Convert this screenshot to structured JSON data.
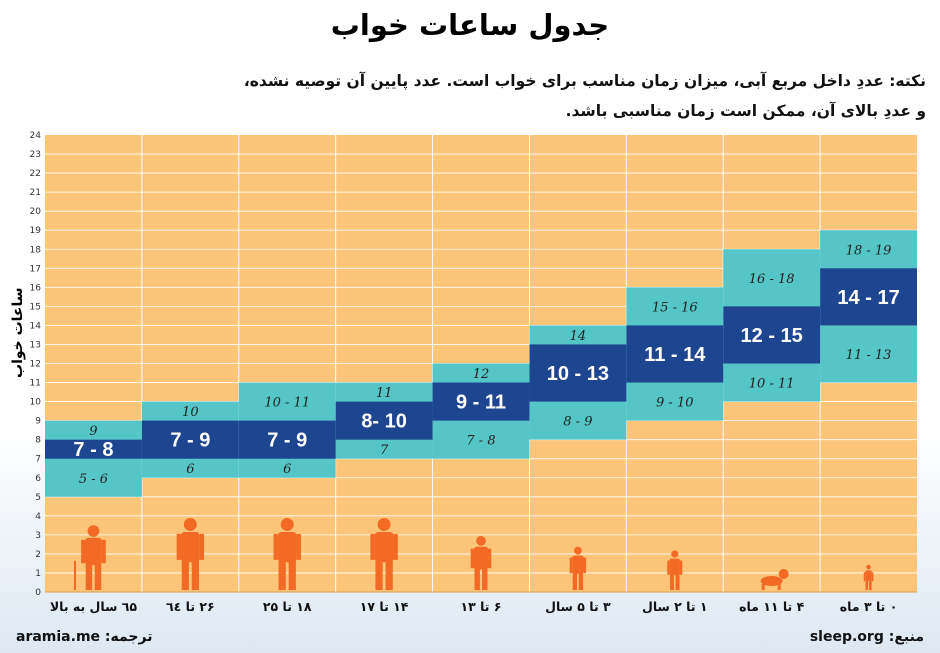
{
  "title": "جدول ساعات خواب",
  "note": {
    "line1": "نکته: عددِ داخل مربع آبی، میزان زمان مناسب برای خواب است. عدد پایین آن توصیه نشده،",
    "line2": "و عددِ بالای آن، ممکن است زمان مناسبی باشد."
  },
  "footer": {
    "source": "منبع: sleep.org",
    "translation": "ترجمه: aramia.me"
  },
  "colors": {
    "background": "#fcc579",
    "gridline": "#ffffff",
    "recommended": "#1d4590",
    "acceptable": "#55c5c7",
    "figure": "#f26a25"
  },
  "chart_data": {
    "type": "bar",
    "ylabel": "ساعات خواب",
    "ylim": [
      0,
      24
    ],
    "yticks": [
      0,
      1,
      2,
      3,
      4,
      5,
      6,
      7,
      8,
      9,
      10,
      11,
      12,
      13,
      14,
      15,
      16,
      17,
      18,
      19,
      20,
      21,
      22,
      23,
      24
    ],
    "categories": [
      "۰ تا ۳ ماه",
      "۴ تا ۱۱ ماه",
      "۱ تا ۲ سال",
      "۳ تا ۵ سال",
      "۶ تا ۱۳",
      "۱۴ تا ۱۷",
      "۱۸ تا ۲۵",
      "۲۶ تا ٦٤",
      "٦۵ سال به بالا"
    ],
    "groups": [
      {
        "figure": "newborn-figure-icon",
        "acc_low": [
          11,
          14
        ],
        "rec": [
          14,
          17
        ],
        "acc_high": [
          17,
          19
        ],
        "label_low": "11 - 13",
        "label_rec": "14 - 17",
        "label_high": "18 - 19"
      },
      {
        "figure": "crawling-baby-figure-icon",
        "acc_low": [
          10,
          12
        ],
        "rec": [
          12,
          15
        ],
        "acc_high": [
          15,
          18
        ],
        "label_low": "10 - 11",
        "label_rec": "12 - 15",
        "label_high": "16 - 18"
      },
      {
        "figure": "toddler-figure-icon",
        "acc_low": [
          9,
          11
        ],
        "rec": [
          11,
          14
        ],
        "acc_high": [
          14,
          16
        ],
        "label_low": "9 - 10",
        "label_rec": "11 - 14",
        "label_high": "15 - 16"
      },
      {
        "figure": "preschooler-figure-icon",
        "acc_low": [
          8,
          10
        ],
        "rec": [
          10,
          13
        ],
        "acc_high": [
          13,
          14
        ],
        "label_low": "8 - 9",
        "label_rec": "10 - 13",
        "label_high": "14"
      },
      {
        "figure": "child-figure-icon",
        "acc_low": [
          7,
          9
        ],
        "rec": [
          9,
          11
        ],
        "acc_high": [
          11,
          12
        ],
        "label_low": "7 - 8",
        "label_rec": "9 - 11",
        "label_high": "12"
      },
      {
        "figure": "teen-figure-icon",
        "acc_low": [
          7,
          8
        ],
        "rec": [
          8,
          10
        ],
        "acc_high": [
          10,
          11
        ],
        "label_low": "7",
        "label_rec": "8- 10",
        "label_high": "11"
      },
      {
        "figure": "young-adult-figure-icon",
        "acc_low": [
          6,
          7
        ],
        "rec": [
          7,
          9
        ],
        "acc_high": [
          9,
          11
        ],
        "label_low": "6",
        "label_rec": "7 - 9",
        "label_high": "10 - 11"
      },
      {
        "figure": "adult-figure-icon",
        "acc_low": [
          6,
          7
        ],
        "rec": [
          7,
          9
        ],
        "acc_high": [
          9,
          10
        ],
        "label_low": "6",
        "label_rec": "7 - 9",
        "label_high": "10"
      },
      {
        "figure": "elderly-figure-icon",
        "acc_low": [
          5,
          7
        ],
        "rec": [
          7,
          8
        ],
        "acc_high": [
          8,
          9
        ],
        "label_low": "5 - 6",
        "label_rec": "7 - 8",
        "label_high": "9"
      }
    ]
  }
}
